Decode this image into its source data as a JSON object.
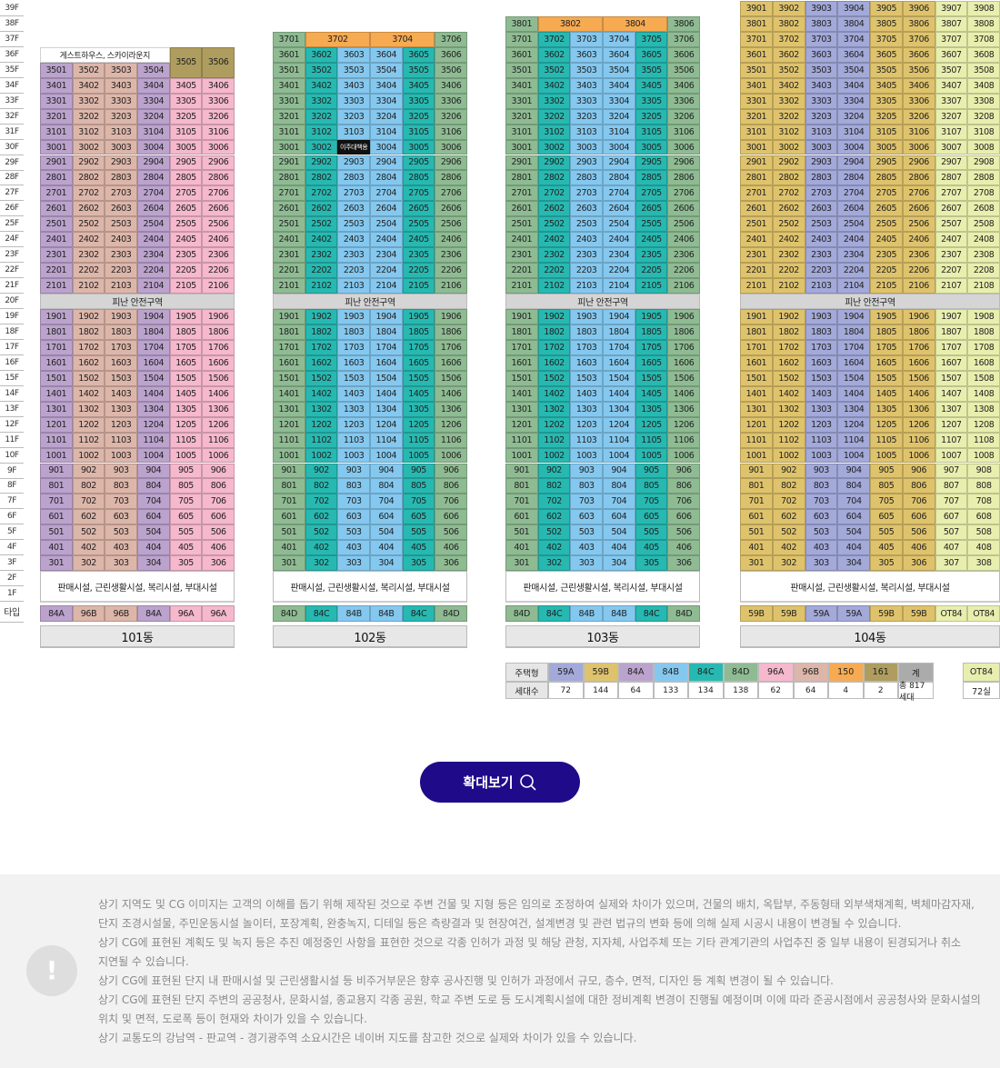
{
  "floor_labels": [
    "39F",
    "38F",
    "37F",
    "36F",
    "35F",
    "34F",
    "33F",
    "32F",
    "31F",
    "30F",
    "29F",
    "28F",
    "27F",
    "26F",
    "25F",
    "24F",
    "23F",
    "22F",
    "21F",
    "20F",
    "19F",
    "18F",
    "17F",
    "16F",
    "15F",
    "14F",
    "13F",
    "12F",
    "11F",
    "10F",
    "9F",
    "8F",
    "7F",
    "6F",
    "5F",
    "4F",
    "3F",
    "2F",
    "1F"
  ],
  "type_row_label": "타입",
  "refuge_label": "피난 안전구역",
  "commercial_label": "판매시설, 근린생활시설, 복리시설, 부대시설",
  "type_colors": {
    "59A": "#a3a9d9",
    "59B": "#dfc36c",
    "84A": "#bba3cd",
    "84B": "#85c8ef",
    "84C": "#27b9b1",
    "84D": "#8fbb93",
    "96A": "#f5b8cd",
    "96B": "#ddb6aa",
    "150": "#f6aa52",
    "161": "#ae9d5e",
    "OT84": "#e8efae",
    "total": "#ababab"
  },
  "buildings": [
    {
      "name": "101동",
      "types": [
        "84A",
        "96B",
        "96B",
        "84A",
        "96A",
        "96A"
      ],
      "top_rows": [
        {
          "floor": 36,
          "cells": [
            {
              "label": "게스트하우스, 스카이라운지",
              "span": 4,
              "type": "white"
            },
            {
              "label": "3505",
              "span": 1,
              "rowspan": 2,
              "type": "161"
            },
            {
              "label": "3506",
              "span": 1,
              "rowspan": 2,
              "type": "161"
            }
          ]
        },
        {
          "floor": 35,
          "cells": [
            {
              "label": "3501",
              "span": 1
            },
            {
              "label": "3502",
              "span": 1
            },
            {
              "label": "3503",
              "span": 1
            },
            {
              "label": "3504",
              "span": 1
            }
          ]
        }
      ],
      "floor_ranges": [
        [
          34,
          21
        ],
        [
          19,
          3
        ]
      ]
    },
    {
      "name": "102동",
      "types": [
        "84D",
        "84C",
        "84B",
        "84B",
        "84C",
        "84D"
      ],
      "top_rows": [
        {
          "floor": 37,
          "cells": [
            {
              "label": "3701",
              "span": 1
            },
            {
              "label": "3702",
              "span": 2,
              "type": "150"
            },
            {
              "label": "3704",
              "span": 2,
              "type": "150"
            },
            {
              "label": "3706",
              "span": 1
            }
          ]
        }
      ],
      "floor_ranges": [
        [
          36,
          21
        ],
        [
          19,
          3
        ]
      ],
      "special": {
        "3003": "이주대책용"
      }
    },
    {
      "name": "103동",
      "types": [
        "84D",
        "84C",
        "84B",
        "84B",
        "84C",
        "84D"
      ],
      "top_rows": [
        {
          "floor": 38,
          "cells": [
            {
              "label": "3801",
              "span": 1
            },
            {
              "label": "3802",
              "span": 2,
              "type": "150"
            },
            {
              "label": "3804",
              "span": 2,
              "type": "150"
            },
            {
              "label": "3806",
              "span": 1
            }
          ]
        }
      ],
      "floor_ranges": [
        [
          37,
          21
        ],
        [
          19,
          3
        ]
      ]
    },
    {
      "name": "104동",
      "types": [
        "59B",
        "59B",
        "59A",
        "59A",
        "59B",
        "59B",
        "OT84",
        "OT84"
      ],
      "top_rows": [],
      "floor_ranges": [
        [
          39,
          21
        ],
        [
          19,
          3
        ]
      ]
    }
  ],
  "legend": {
    "header_type": "주택형",
    "header_count": "세대수",
    "items": [
      {
        "type": "59A",
        "count": "72"
      },
      {
        "type": "59B",
        "count": "144"
      },
      {
        "type": "84A",
        "count": "64"
      },
      {
        "type": "84B",
        "count": "133"
      },
      {
        "type": "84C",
        "count": "134"
      },
      {
        "type": "84D",
        "count": "138"
      },
      {
        "type": "96A",
        "count": "62"
      },
      {
        "type": "96B",
        "count": "64"
      },
      {
        "type": "150",
        "count": "4"
      },
      {
        "type": "161",
        "count": "2"
      },
      {
        "type": "total",
        "label": "계",
        "count": "총 817세대"
      }
    ],
    "extra": {
      "type": "OT84",
      "count": "72실"
    }
  },
  "zoom_button": {
    "label": "확대보기",
    "icon": "search-icon"
  },
  "notice": {
    "icon": "exclamation-icon",
    "lines": [
      "상기 지역도 및 CG 이미지는 고객의 이해를 돕기 위해 제작된 것으로 주변 건물 및 지형 등은 임의로 조정하여 실제와 차이가 있으며, 건물의 배치, 옥탑부, 주동형태 외부색채계획, 벽체마감자재,",
      "단지 조경시설물, 주민운동시설 놀이터, 포장계획, 완충녹지, 디테일 등은 측량결과 및 현장여건, 설계변경 및 관련 법규의 변화 등에 의해 실제 시공시 내용이 변경될 수 있습니다.",
      "상기 CG에 표현된 계획도 및 녹지 등은 추진 예정중인 사항을 표현한 것으로 각종 인허가 과정 및 해당 관청, 지자체, 사업주체 또는 기타 관계기관의 사업추진 중 일부 내용이 된경되거나 취소",
      "지연될 수 있습니다.",
      "상기 CG에 표현된 단지 내 판매시설 및 근린생활시설 등 비주거부문은 향후 공사진행 및 인허가 과정에서 규모, 층수, 면적, 디자인 등 계획 변경이 될 수 있습니다.",
      "상기 CG에 표현된 단지 주변의 공공청사, 문화시설, 종교용지 각종 공원, 학교 주변 도로 등 도시계획시설에 대한 정비계획 변경이 진행될 예정이며 이에 따라 준공시점에서 공공청사와 문화시설의",
      "위치 및 면적, 도로폭 등이 현재와 차이가 있을 수 있습니다.",
      "상기 교통도의 강남역 - 판교역 - 경기광주역 소요시간은 네이버 지도를 참고한 것으로 실제와 차이가 있을 수 있습니다."
    ]
  }
}
